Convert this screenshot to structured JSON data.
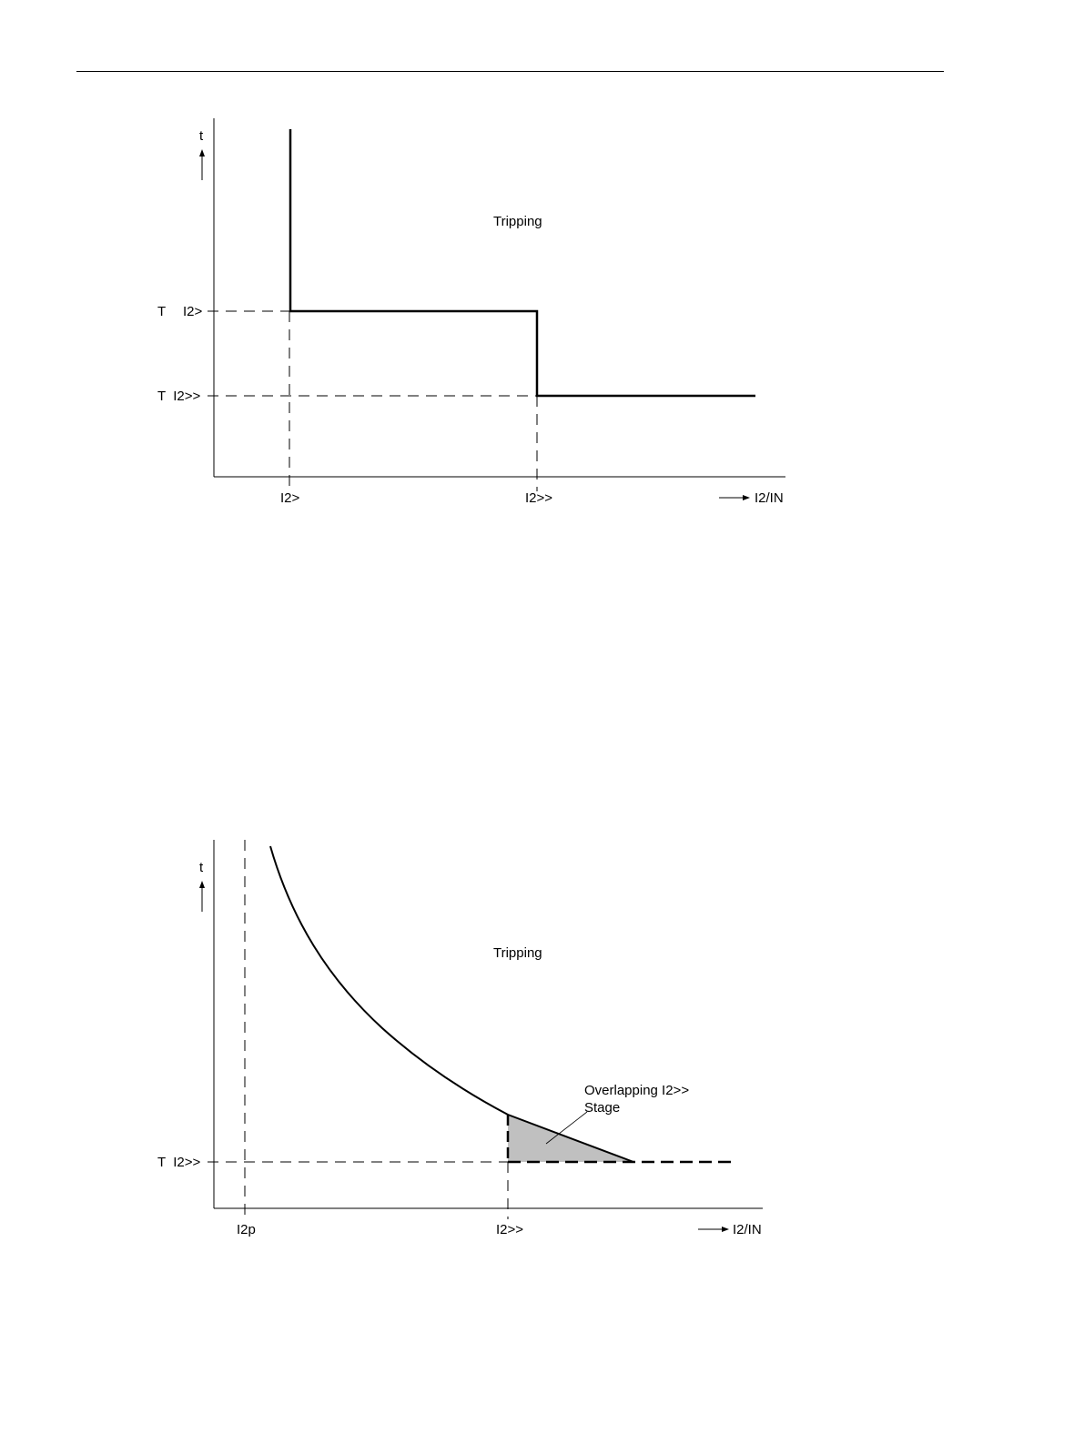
{
  "diagram1": {
    "axis_t": "t",
    "label_T": "T",
    "label_I2_gt": "I2>",
    "label_T_I2_gtgt": "T  I2>>",
    "tripping": "Tripping",
    "x_I2_gt": "I2>",
    "x_I2_gtgt": "I2>>",
    "x_axis_label": "I2/IN"
  },
  "diagram2": {
    "axis_t": "t",
    "label_T_I2_gtgt": "T  I2>>",
    "tripping": "Tripping",
    "overlap_line1": "Overlapping I2>>",
    "overlap_line2": "Stage",
    "x_I2p": "I2p",
    "x_I2_gtgt": "I2>>",
    "x_axis_label": "I2/IN"
  },
  "colors": {
    "line": "#000000",
    "shade": "#c0c0c0"
  }
}
